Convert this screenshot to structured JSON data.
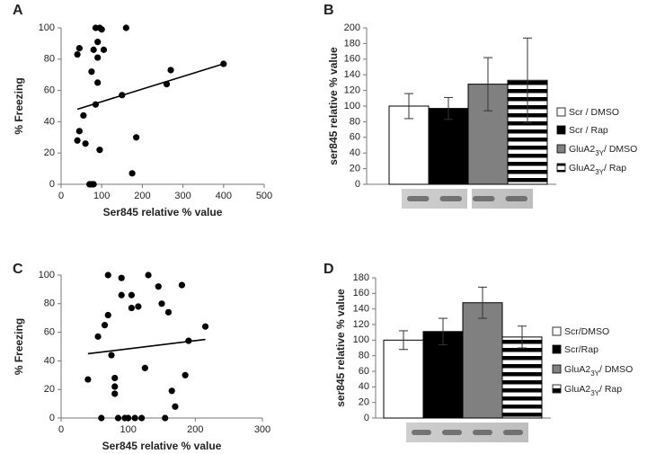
{
  "chart_data": [
    {
      "type": "scatter",
      "label": "A",
      "xlabel": "Ser845 relative % value",
      "ylabel": "% Freezing",
      "x": [
        45,
        40,
        85,
        95,
        100,
        90,
        105,
        80,
        75,
        90,
        90,
        85,
        55,
        45,
        40,
        60,
        95,
        70,
        75,
        80,
        150,
        160,
        175,
        185,
        260,
        270,
        400
      ],
      "y": [
        87,
        83,
        100,
        100,
        99,
        91,
        86,
        86,
        72,
        81,
        65,
        51,
        44,
        34,
        28,
        26,
        22,
        0,
        0,
        0,
        57,
        100,
        7,
        30,
        64,
        73,
        77
      ],
      "color": "#000000",
      "xlim": [
        0,
        500
      ],
      "ylim": [
        0,
        100
      ],
      "xticks": [
        0,
        100,
        200,
        300,
        400,
        500
      ],
      "yticks": [
        0,
        20,
        40,
        60,
        80,
        100
      ],
      "trendline": {
        "x": [
          40,
          400
        ],
        "y": [
          48,
          77
        ]
      }
    },
    {
      "type": "bar",
      "label": "B",
      "ylabel": "ser845 relative % value",
      "series": [
        {
          "name": [
            "Scr / DMSO"
          ],
          "color": "#ffffff",
          "values": [
            100
          ],
          "errors": [
            16
          ]
        },
        {
          "name": [
            "Scr / Rap"
          ],
          "color": "#000000",
          "values": [
            97
          ],
          "errors": [
            14
          ]
        },
        {
          "name": [
            "GluA2",
            "3Y",
            "/ DMSO"
          ],
          "color": "#808080",
          "values": [
            128
          ],
          "errors": [
            34
          ]
        },
        {
          "name": [
            "GluA2",
            "3Y",
            "/ Rap"
          ],
          "color": "stripes",
          "values": [
            133
          ],
          "errors": [
            54
          ]
        }
      ],
      "ylim": [
        0,
        200
      ],
      "yticks": [
        0,
        20,
        40,
        60,
        80,
        100,
        120,
        140,
        160,
        180,
        200
      ]
    },
    {
      "type": "scatter",
      "label": "C",
      "xlabel": "Ser845 relative % value",
      "ylabel": "% Freezing",
      "x": [
        40,
        55,
        60,
        65,
        70,
        70,
        75,
        80,
        80,
        80,
        85,
        90,
        90,
        95,
        100,
        105,
        105,
        110,
        115,
        120,
        125,
        130,
        145,
        150,
        155,
        160,
        165,
        170,
        180,
        185,
        190,
        215
      ],
      "y": [
        27,
        57,
        0,
        65,
        100,
        72,
        44,
        28,
        22,
        17,
        0,
        86,
        98,
        0,
        0,
        77,
        86,
        0,
        78,
        0,
        35,
        100,
        92,
        80,
        0,
        74,
        19,
        8,
        93,
        30,
        54,
        64
      ],
      "color": "#000000",
      "xlim": [
        0,
        300
      ],
      "ylim": [
        0,
        100
      ],
      "xticks": [
        0,
        100,
        200,
        300
      ],
      "yticks": [
        0,
        20,
        40,
        60,
        80,
        100
      ],
      "trendline": {
        "x": [
          40,
          215
        ],
        "y": [
          45,
          55
        ]
      }
    },
    {
      "type": "bar",
      "label": "D",
      "ylabel": "ser845 relative % value",
      "series": [
        {
          "name": [
            "Scr/DMSO"
          ],
          "color": "#ffffff",
          "values": [
            100
          ],
          "errors": [
            12
          ]
        },
        {
          "name": [
            "Scr/Rap"
          ],
          "color": "#000000",
          "values": [
            111
          ],
          "errors": [
            17
          ]
        },
        {
          "name": [
            "GluA2",
            "3Y",
            "/ DMSO"
          ],
          "color": "#808080",
          "values": [
            148
          ],
          "errors": [
            20
          ]
        },
        {
          "name": [
            "GluA2",
            "3Y",
            "/ Rap"
          ],
          "color": "stripes",
          "values": [
            104
          ],
          "errors": [
            14
          ]
        }
      ],
      "ylim": [
        0,
        180
      ],
      "yticks": [
        0,
        20,
        40,
        60,
        80,
        100,
        120,
        140,
        160,
        180
      ]
    }
  ]
}
